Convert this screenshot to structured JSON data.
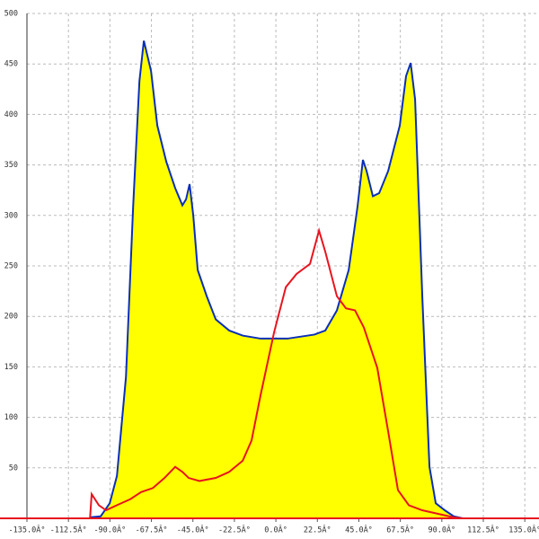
{
  "chart_data": {
    "type": "area",
    "xlim": [
      -135,
      142.7
    ],
    "ylim": [
      0,
      500
    ],
    "xticks": [
      {
        "value": -135,
        "label": "-135.0Â°"
      },
      {
        "value": -112.5,
        "label": "-112.5Â°"
      },
      {
        "value": -90,
        "label": "-90.0Â°"
      },
      {
        "value": -67.5,
        "label": "-67.5Â°"
      },
      {
        "value": -45,
        "label": "-45.0Â°"
      },
      {
        "value": -22.5,
        "label": "-22.5Â°"
      },
      {
        "value": 0,
        "label": "0.0Â°"
      },
      {
        "value": 22.5,
        "label": "22.5Â°"
      },
      {
        "value": 45,
        "label": "45.0Â°"
      },
      {
        "value": 67.5,
        "label": "67.5Â°"
      },
      {
        "value": 90,
        "label": "90.0Â°"
      },
      {
        "value": 112.5,
        "label": "112.5Â°"
      },
      {
        "value": 135,
        "label": "135.0Â°"
      }
    ],
    "yticks": [
      50,
      100,
      150,
      200,
      250,
      300,
      350,
      400,
      450,
      500
    ],
    "grid": true,
    "series": [
      {
        "color": "#0a2fb8",
        "fill": "#ffff00",
        "x": [
          -100.8,
          -95,
          -90.1,
          -86.2,
          -81.3,
          -77.4,
          -74,
          -71.6,
          -67.7,
          -64.3,
          -59.4,
          -54.6,
          -50.7,
          -48.7,
          -46.8,
          -44.8,
          -42.4,
          -37.5,
          -32.6,
          -25.3,
          -18,
          -8.3,
          6.3,
          20.9,
          26.8,
          33.1,
          39.5,
          44.3,
          47.2,
          49.2,
          52.6,
          56,
          60.9,
          67.2,
          70.6,
          73.1,
          75.5,
          79.4,
          83.3,
          86.7,
          91.6,
          96.4,
          101.3
        ],
        "values": [
          1,
          2,
          15,
          42,
          140,
          309,
          433,
          473,
          443,
          389,
          353,
          327,
          310,
          316,
          331,
          300,
          246,
          220,
          197,
          186,
          181,
          178,
          178,
          182,
          186,
          206,
          246,
          309,
          355,
          344,
          319,
          322,
          344,
          389,
          438,
          451,
          415,
          220,
          51,
          15,
          8,
          2,
          0
        ]
      },
      {
        "color": "#e8141e",
        "x": [
          -100.8,
          -99.9,
          -96,
          -92.1,
          -86.2,
          -78.9,
          -73.1,
          -66.7,
          -60.4,
          -54.6,
          -50.7,
          -47.3,
          -41.4,
          -32.6,
          -25.3,
          -18,
          -13.2,
          -8.3,
          -1,
          5.4,
          11.2,
          18.5,
          23.4,
          26.8,
          33.1,
          38,
          42.9,
          47.7,
          55,
          60.9,
          66.2,
          72.1,
          79.4,
          89.1,
          96.4,
          101.3
        ],
        "values": [
          0,
          24,
          13,
          8,
          13,
          19,
          26,
          30,
          40,
          51,
          46,
          40,
          37,
          40,
          46,
          57,
          77,
          122,
          184,
          229,
          242,
          252,
          285,
          264,
          220,
          208,
          206,
          189,
          149,
          86,
          28,
          13,
          8,
          4,
          1,
          0
        ]
      }
    ]
  }
}
